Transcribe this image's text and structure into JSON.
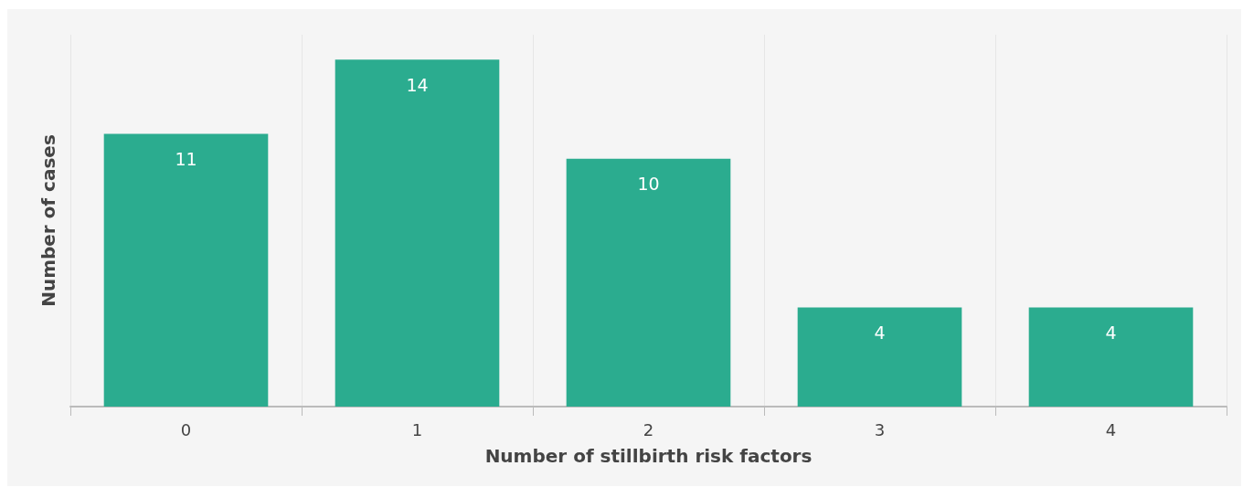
{
  "chart_data": {
    "type": "bar",
    "xlabel": "Number of stillbirth risk factors",
    "ylabel": "Number of cases",
    "categories": [
      "0",
      "1",
      "2",
      "3",
      "4"
    ],
    "values": [
      11,
      14,
      10,
      4,
      4
    ],
    "color": "#2bac8f",
    "data_labels": true,
    "grid": "x",
    "tick_labels": "x"
  }
}
